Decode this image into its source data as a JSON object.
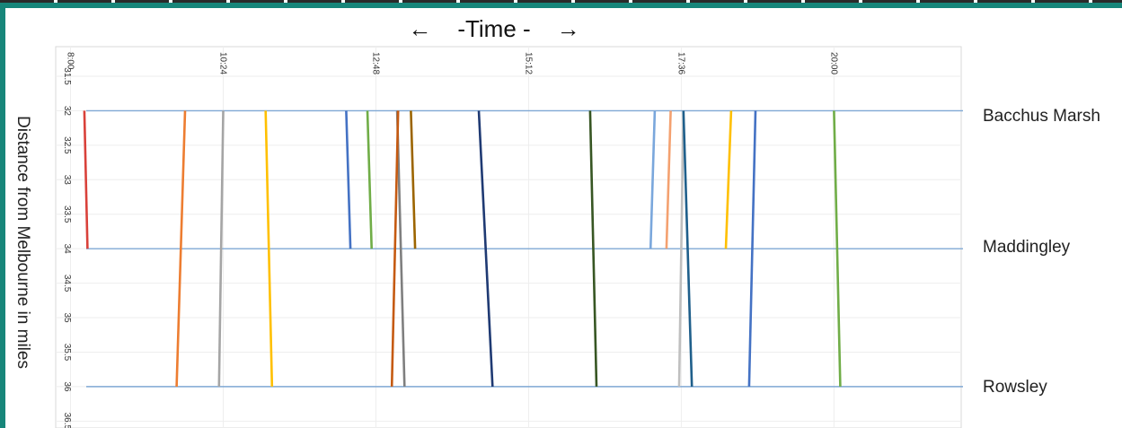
{
  "header": {
    "time_label": "-Time -",
    "arrow_left": "←",
    "arrow_right": "→"
  },
  "ylabel": "Distance from Melbourne in miles",
  "stations": [
    {
      "name": "Bacchus Marsh",
      "distance": 32
    },
    {
      "name": "Maddingley",
      "distance": 34
    },
    {
      "name": "Rowsley",
      "distance": 36
    }
  ],
  "chart_data": {
    "type": "line",
    "x_tick_labels": [
      "8:00",
      "10:24",
      "12:48",
      "15:12",
      "17:36",
      "20:00"
    ],
    "x_tick_values_min": [
      480,
      624,
      768,
      912,
      1056,
      1200
    ],
    "y_tick_labels": [
      "31.5",
      "32",
      "32.5",
      "33",
      "33.5",
      "34",
      "34.5",
      "35",
      "35.5",
      "36",
      "36.5"
    ],
    "xlim_min": [
      466,
      1320
    ],
    "ylim": [
      31.5,
      36.6
    ],
    "grid": true,
    "series": [
      {
        "color": "#d9413a",
        "points": [
          [
            493,
            32
          ],
          [
            496,
            34
          ]
        ]
      },
      {
        "color": "#ed7d31",
        "points": [
          [
            588,
            32
          ],
          [
            580,
            36
          ]
        ]
      },
      {
        "color": "#a5a5a5",
        "points": [
          [
            624,
            32
          ],
          [
            620,
            36
          ]
        ]
      },
      {
        "color": "#ffc000",
        "points": [
          [
            664,
            32
          ],
          [
            670,
            36
          ]
        ]
      },
      {
        "color": "#4472c4",
        "points": [
          [
            740,
            32
          ],
          [
            744,
            34
          ]
        ]
      },
      {
        "color": "#70ad47",
        "points": [
          [
            760,
            32
          ],
          [
            764,
            34
          ]
        ]
      },
      {
        "color": "#7f7f7f",
        "points": [
          [
            788,
            32
          ],
          [
            795,
            36
          ]
        ]
      },
      {
        "color": "#c55a11",
        "points": [
          [
            783,
            36
          ],
          [
            789,
            32
          ]
        ]
      },
      {
        "color": "#9c6500",
        "points": [
          [
            801,
            32
          ],
          [
            805,
            34
          ]
        ]
      },
      {
        "color": "#1f3a73",
        "points": [
          [
            865,
            32
          ],
          [
            878,
            36
          ]
        ]
      },
      {
        "color": "#375623",
        "points": [
          [
            970,
            32
          ],
          [
            976,
            36
          ]
        ]
      },
      {
        "color": "#7aa7dc",
        "points": [
          [
            1027,
            34
          ],
          [
            1031,
            32
          ]
        ]
      },
      {
        "color": "#f4a170",
        "points": [
          [
            1042,
            34
          ],
          [
            1046,
            32
          ]
        ]
      },
      {
        "color": "#bfbfbf",
        "points": [
          [
            1054,
            36
          ],
          [
            1058,
            32
          ]
        ]
      },
      {
        "color": "#1f5f8b",
        "points": [
          [
            1058,
            32
          ],
          [
            1066,
            36
          ]
        ]
      },
      {
        "color": "#ffc000",
        "points": [
          [
            1098,
            34
          ],
          [
            1103,
            32
          ]
        ]
      },
      {
        "color": "#4472c4",
        "points": [
          [
            1120,
            36
          ],
          [
            1126,
            32
          ]
        ]
      },
      {
        "color": "#70ad47",
        "points": [
          [
            1200,
            32
          ],
          [
            1206,
            36
          ]
        ]
      }
    ]
  }
}
